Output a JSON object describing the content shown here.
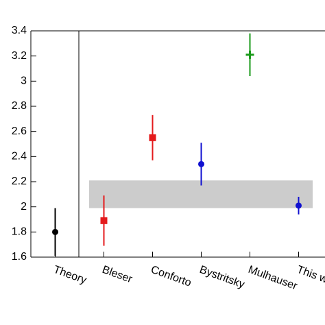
{
  "chart_data": {
    "type": "errorbar",
    "categories": [
      "Theory",
      "Bleser",
      "Conforto",
      "Bystritsky",
      "Mulhauser",
      "This w"
    ],
    "values": [
      1.8,
      1.89,
      2.55,
      2.34,
      3.21,
      2.01
    ],
    "errors": [
      0.19,
      0.2,
      0.18,
      0.17,
      0.17,
      0.07
    ],
    "colors": [
      "#000000",
      "#e41a1c",
      "#e41a1c",
      "#1010d0",
      "#1a9a1a",
      "#1010d0"
    ],
    "markers": [
      "circle",
      "square",
      "square",
      "circle",
      "plus",
      "circle"
    ],
    "band": {
      "ylim": [
        1.99,
        2.21
      ],
      "color": "#cccccc"
    },
    "ylim": [
      1.6,
      3.4
    ],
    "yticks": [
      1.6,
      1.8,
      2,
      2.2,
      2.4,
      2.6,
      2.8,
      3,
      3.2,
      3.4
    ]
  }
}
